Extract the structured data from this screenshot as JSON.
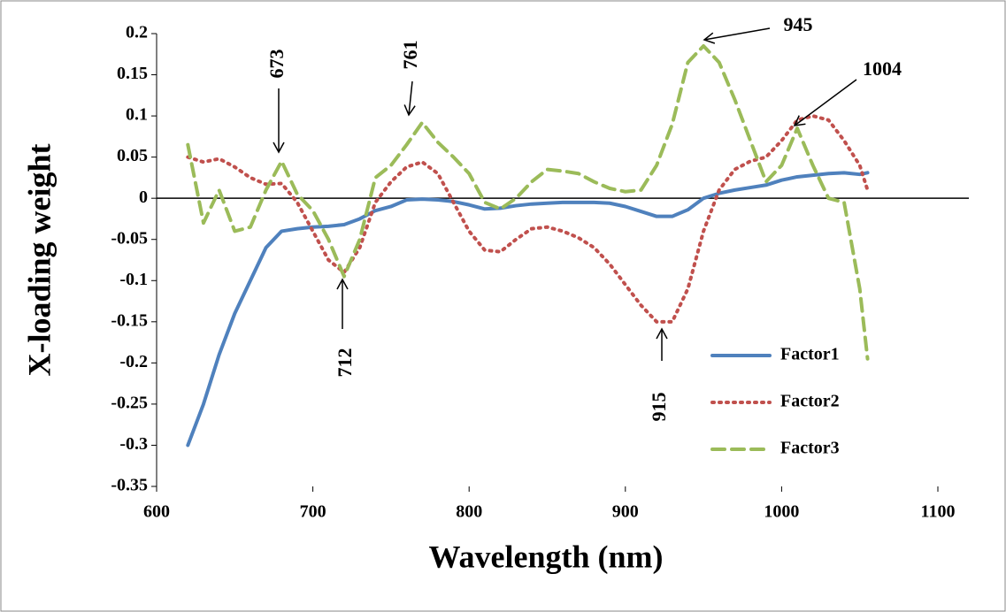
{
  "chart_data": {
    "type": "line",
    "y_label": "X-loading weight",
    "x_label": "Wavelength (nm)",
    "x": [
      620,
      630,
      640,
      650,
      660,
      670,
      680,
      690,
      700,
      710,
      720,
      730,
      740,
      750,
      760,
      770,
      780,
      790,
      800,
      810,
      820,
      830,
      840,
      850,
      860,
      870,
      880,
      890,
      900,
      910,
      920,
      930,
      940,
      950,
      960,
      970,
      980,
      990,
      1000,
      1010,
      1020,
      1030,
      1040,
      1050,
      1055
    ],
    "series": [
      {
        "name": "Factor1",
        "color": "#4f81bd",
        "style": "solid",
        "values": [
          -0.3,
          -0.25,
          -0.19,
          -0.14,
          -0.1,
          -0.06,
          -0.04,
          -0.037,
          -0.035,
          -0.034,
          -0.032,
          -0.025,
          -0.015,
          -0.01,
          -0.002,
          -0.001,
          -0.002,
          -0.004,
          -0.008,
          -0.013,
          -0.012,
          -0.009,
          -0.007,
          -0.006,
          -0.005,
          -0.005,
          -0.005,
          -0.006,
          -0.01,
          -0.016,
          -0.022,
          -0.022,
          -0.014,
          0,
          0.006,
          0.01,
          0.013,
          0.016,
          0.022,
          0.026,
          0.028,
          0.03,
          0.031,
          0.029,
          0.031
        ]
      },
      {
        "name": "Factor2",
        "color": "#c0504d",
        "style": "dotted",
        "values": [
          0.05,
          0.044,
          0.048,
          0.038,
          0.025,
          0.017,
          0.018,
          -0.005,
          -0.04,
          -0.075,
          -0.09,
          -0.06,
          -0.005,
          0.02,
          0.038,
          0.044,
          0.03,
          -0.005,
          -0.04,
          -0.063,
          -0.065,
          -0.05,
          -0.037,
          -0.035,
          -0.04,
          -0.048,
          -0.06,
          -0.08,
          -0.105,
          -0.13,
          -0.15,
          -0.15,
          -0.11,
          -0.04,
          0.01,
          0.035,
          0.045,
          0.05,
          0.07,
          0.095,
          0.1,
          0.095,
          0.07,
          0.04,
          0.01
        ]
      },
      {
        "name": "Factor3",
        "color": "#9bbb59",
        "style": "dashed",
        "values": [
          0.065,
          -0.03,
          0.01,
          -0.04,
          -0.035,
          0.01,
          0.045,
          0.005,
          -0.015,
          -0.05,
          -0.095,
          -0.05,
          0.025,
          0.04,
          0.065,
          0.092,
          0.068,
          0.05,
          0.03,
          -0.005,
          -0.013,
          0,
          0.02,
          0.035,
          0.033,
          0.03,
          0.02,
          0.012,
          0.008,
          0.01,
          0.04,
          0.09,
          0.165,
          0.185,
          0.165,
          0.12,
          0.07,
          0.02,
          0.04,
          0.085,
          0.04,
          0,
          -0.005,
          -0.11,
          -0.195
        ]
      }
    ],
    "xlim": [
      600,
      1100
    ],
    "xticks": [
      600,
      700,
      800,
      900,
      1000,
      1100
    ],
    "ylim": [
      -0.35,
      0.2
    ],
    "yticks": [
      0.2,
      0.15,
      0.1,
      0.05,
      0,
      -0.05,
      -0.1,
      -0.15,
      -0.2,
      -0.25,
      -0.3,
      -0.35
    ],
    "legend": "right",
    "annotations": [
      {
        "text": "673"
      },
      {
        "text": "761"
      },
      {
        "text": "712"
      },
      {
        "text": "915"
      },
      {
        "text": "945"
      },
      {
        "text": "1004"
      }
    ]
  }
}
